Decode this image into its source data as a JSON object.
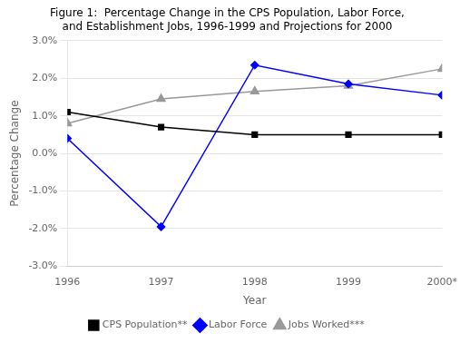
{
  "chart_data": {
    "type": "line",
    "title": "Figure 1:  Percentage Change in the CPS Population, Labor Force,\nand Establishment Jobs, 1996-1999 and Projections for 2000",
    "x_label": "Year",
    "y_label": "Percentage Change",
    "categories": [
      "1996",
      "1997",
      "1998",
      "1999",
      "2000*"
    ],
    "series": [
      {
        "name": "CPS Population**",
        "color": "#000000",
        "marker": "square",
        "values": [
          1.1,
          0.7,
          0.5,
          0.5,
          0.5
        ]
      },
      {
        "name": "Labor Force",
        "color": "#0000ff",
        "marker": "diamond",
        "values": [
          0.4,
          -1.95,
          2.35,
          1.85,
          1.55
        ]
      },
      {
        "name": "Jobs Worked***",
        "color": "#999999",
        "marker": "triangle",
        "values": [
          0.8,
          1.45,
          1.65,
          1.8,
          2.25
        ]
      }
    ],
    "ylim": [
      -3.0,
      3.0
    ],
    "yticks": [
      {
        "value": -3.0,
        "label": "-3.0%"
      },
      {
        "value": -2.0,
        "label": "-2.0%"
      },
      {
        "value": -1.0,
        "label": "-1.0%"
      },
      {
        "value": 0.0,
        "label": "0.0%"
      },
      {
        "value": 1.0,
        "label": "1.0%"
      },
      {
        "value": 2.0,
        "label": "2.0%"
      },
      {
        "value": 3.0,
        "label": "3.0%"
      }
    ],
    "grid": "y",
    "legend": "bottom"
  }
}
